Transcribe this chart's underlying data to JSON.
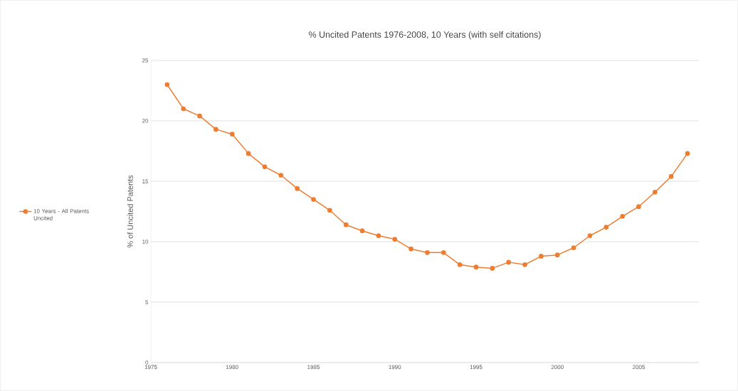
{
  "chart_data": {
    "type": "line",
    "title": "% Uncited Patents 1976-2008, 10 Years (with self citations)",
    "ylabel": "% of Uncited Patents",
    "x": [
      1976,
      1977,
      1978,
      1979,
      1980,
      1981,
      1982,
      1983,
      1984,
      1985,
      1986,
      1987,
      1988,
      1989,
      1990,
      1991,
      1992,
      1993,
      1994,
      1995,
      1996,
      1997,
      1998,
      1999,
      2000,
      2001,
      2002,
      2003,
      2004,
      2005,
      2006,
      2007,
      2008
    ],
    "series": [
      {
        "name": "10 Years - All Patents Uncited",
        "color": "#ed7d31",
        "values": [
          23.0,
          21.0,
          20.4,
          19.3,
          18.9,
          17.3,
          16.2,
          15.5,
          14.4,
          13.5,
          12.6,
          11.4,
          10.9,
          10.5,
          10.2,
          9.4,
          9.1,
          9.1,
          8.1,
          7.9,
          7.8,
          8.3,
          8.1,
          8.8,
          8.9,
          9.5,
          10.5,
          11.2,
          12.1,
          12.9,
          14.1,
          15.4,
          17.3
        ]
      }
    ],
    "xlim": [
      1975,
      2008.7
    ],
    "ylim": [
      0,
      25
    ],
    "xticks": [
      1975,
      1980,
      1985,
      1990,
      1995,
      2000,
      2005
    ],
    "yticks": [
      0,
      5,
      10,
      15,
      20,
      25
    ],
    "grid": "y",
    "legend": "left",
    "marker": "circle",
    "line_style": "solid"
  }
}
